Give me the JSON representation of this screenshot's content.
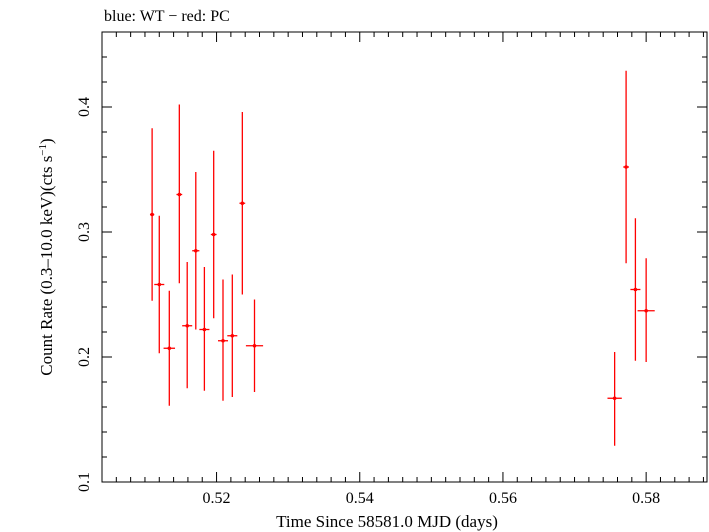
{
  "chart_data": {
    "type": "scatter",
    "title": "blue: WT − red: PC",
    "xlabel": "Time Since 58581.0 MJD (days)",
    "ylabel": "Count Rate (0.3–10.0 keV)(cts s",
    "ylabel_sup": "−1",
    "ylabel_tail": ")",
    "xlim": [
      0.504,
      0.5885
    ],
    "ylim": [
      0.1,
      0.46
    ],
    "x_ticks": [
      {
        "value": 0.52,
        "label": "0.52"
      },
      {
        "value": 0.54,
        "label": "0.54"
      },
      {
        "value": 0.56,
        "label": "0.56"
      },
      {
        "value": 0.58,
        "label": "0.58"
      }
    ],
    "y_ticks": [
      {
        "value": 0.1,
        "label": "0.1"
      },
      {
        "value": 0.2,
        "label": "0.2"
      },
      {
        "value": 0.3,
        "label": "0.3"
      },
      {
        "value": 0.4,
        "label": "0.4"
      }
    ],
    "series": [
      {
        "color": "#ff0000",
        "points": [
          {
            "x": 0.511,
            "y": 0.314,
            "xerr": 0.0003,
            "ylo": 0.245,
            "yhi": 0.383
          },
          {
            "x": 0.512,
            "y": 0.258,
            "xerr": 0.0007,
            "ylo": 0.203,
            "yhi": 0.313
          },
          {
            "x": 0.5134,
            "y": 0.207,
            "xerr": 0.0008,
            "ylo": 0.161,
            "yhi": 0.253
          },
          {
            "x": 0.5148,
            "y": 0.33,
            "xerr": 0.0004,
            "ylo": 0.259,
            "yhi": 0.402
          },
          {
            "x": 0.5159,
            "y": 0.225,
            "xerr": 0.0007,
            "ylo": 0.175,
            "yhi": 0.276
          },
          {
            "x": 0.5171,
            "y": 0.285,
            "xerr": 0.0005,
            "ylo": 0.222,
            "yhi": 0.348
          },
          {
            "x": 0.5183,
            "y": 0.222,
            "xerr": 0.0007,
            "ylo": 0.173,
            "yhi": 0.272
          },
          {
            "x": 0.5196,
            "y": 0.298,
            "xerr": 0.0004,
            "ylo": 0.231,
            "yhi": 0.365
          },
          {
            "x": 0.5209,
            "y": 0.213,
            "xerr": 0.0007,
            "ylo": 0.165,
            "yhi": 0.262
          },
          {
            "x": 0.5222,
            "y": 0.217,
            "xerr": 0.0007,
            "ylo": 0.168,
            "yhi": 0.266
          },
          {
            "x": 0.5236,
            "y": 0.323,
            "xerr": 0.0004,
            "ylo": 0.25,
            "yhi": 0.396
          },
          {
            "x": 0.5253,
            "y": 0.209,
            "xerr": 0.0012,
            "ylo": 0.172,
            "yhi": 0.246
          },
          {
            "x": 0.5756,
            "y": 0.167,
            "xerr": 0.001,
            "ylo": 0.129,
            "yhi": 0.204
          },
          {
            "x": 0.5772,
            "y": 0.352,
            "xerr": 0.0004,
            "ylo": 0.275,
            "yhi": 0.429
          },
          {
            "x": 0.5785,
            "y": 0.254,
            "xerr": 0.0007,
            "ylo": 0.197,
            "yhi": 0.311
          },
          {
            "x": 0.58,
            "y": 0.237,
            "xerr": 0.0012,
            "ylo": 0.196,
            "yhi": 0.279
          }
        ]
      }
    ]
  }
}
